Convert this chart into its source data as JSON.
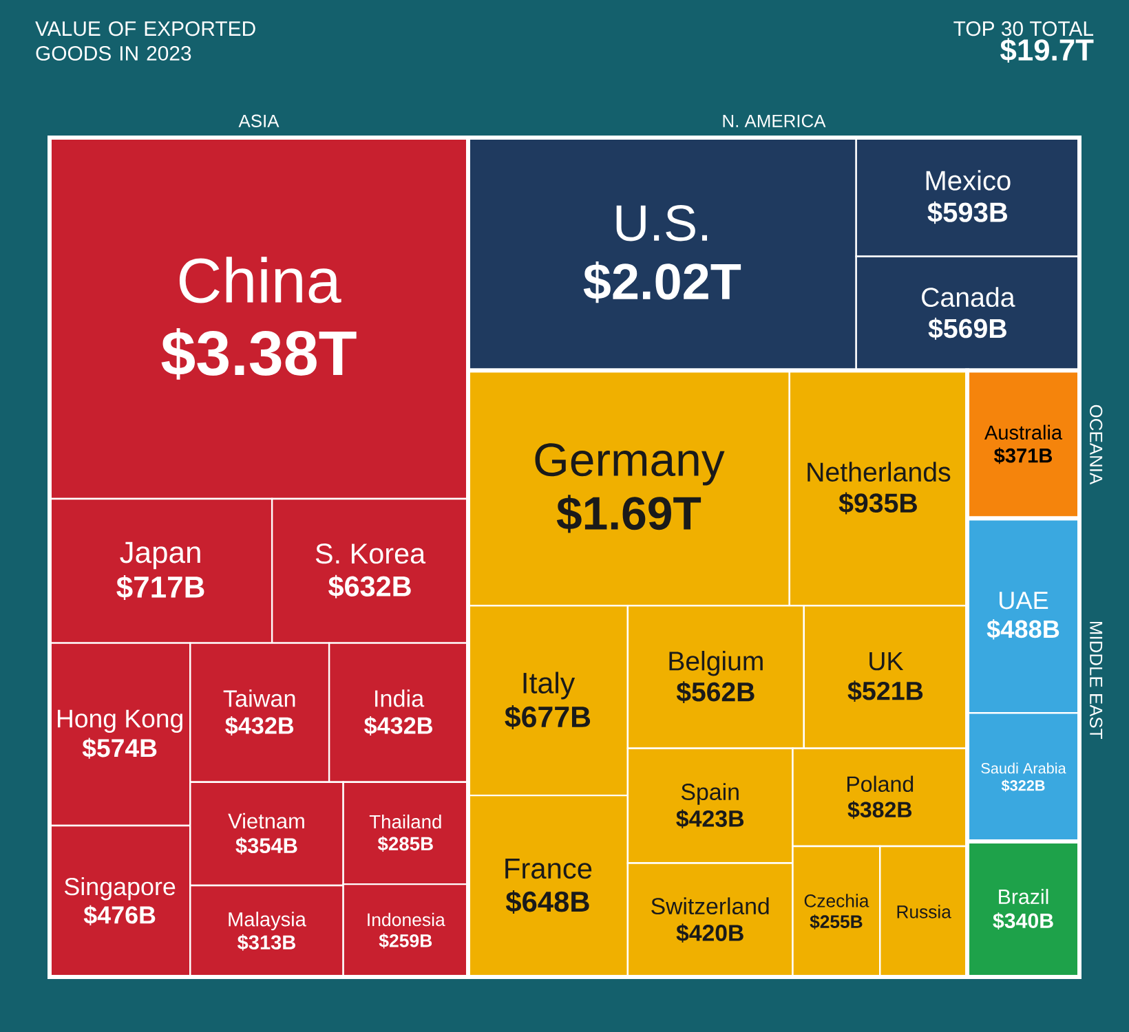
{
  "chart_data": {
    "type": "other",
    "title": "VALUE OF EXPORTED GOODS IN 2023",
    "annotations": [
      "TOP 30 TOTAL",
      "$19.7T"
    ],
    "legend": false,
    "categories": [
      "China",
      "Japan",
      "S. Korea",
      "Hong Kong",
      "Singapore",
      "Taiwan",
      "India",
      "Vietnam",
      "Malaysia",
      "Thailand",
      "Indonesia",
      "U.S.",
      "Mexico",
      "Canada",
      "Germany",
      "Netherlands",
      "Italy",
      "France",
      "Belgium",
      "UK",
      "Spain",
      "Switzerland",
      "Poland",
      "Czechia",
      "Russia",
      "Australia",
      "UAE",
      "Saudi Arabia",
      "Brazil"
    ],
    "series": [
      {
        "name": "ASIA",
        "color": "#c8202f",
        "values": [
          3380000000000,
          717000000000,
          632000000000,
          574000000000,
          476000000000,
          432000000000,
          432000000000,
          354000000000,
          313000000000,
          285000000000,
          259000000000,
          null,
          null,
          null,
          null,
          null,
          null,
          null,
          null,
          null,
          null,
          null,
          null,
          null,
          null,
          null,
          null,
          null,
          null
        ],
        "value_labels": [
          "$3.38T",
          "$717B",
          "$632B",
          "$574B",
          "$476B",
          "$432B",
          "$432B",
          "$354B",
          "$313B",
          "$285B",
          "$259B",
          null,
          null,
          null,
          null,
          null,
          null,
          null,
          null,
          null,
          null,
          null,
          null,
          null,
          null,
          null,
          null,
          null,
          null
        ]
      },
      {
        "name": "N. AMERICA",
        "color": "#1f3a5f",
        "values": [
          null,
          null,
          null,
          null,
          null,
          null,
          null,
          null,
          null,
          null,
          null,
          2020000000000,
          593000000000,
          569000000000,
          null,
          null,
          null,
          null,
          null,
          null,
          null,
          null,
          null,
          null,
          null,
          null,
          null,
          null,
          null
        ],
        "value_labels": [
          null,
          null,
          null,
          null,
          null,
          null,
          null,
          null,
          null,
          null,
          null,
          "$2.02T",
          "$593B",
          "$569B",
          null,
          null,
          null,
          null,
          null,
          null,
          null,
          null,
          null,
          null,
          null,
          null,
          null,
          null,
          null
        ]
      },
      {
        "color": "#f0b000",
        "values": [
          null,
          null,
          null,
          null,
          null,
          null,
          null,
          null,
          null,
          null,
          null,
          null,
          null,
          null,
          1690000000000,
          935000000000,
          677000000000,
          648000000000,
          562000000000,
          521000000000,
          423000000000,
          420000000000,
          382000000000,
          255000000000,
          null,
          null,
          null,
          null,
          null
        ],
        "value_labels": [
          null,
          null,
          null,
          null,
          null,
          null,
          null,
          null,
          null,
          null,
          null,
          null,
          null,
          null,
          "$1.69T",
          "$935B",
          "$677B",
          "$648B",
          "$562B",
          "$521B",
          "$423B",
          "$420B",
          "$382B",
          "$255B",
          null,
          null,
          null,
          null,
          null
        ]
      },
      {
        "name": "OCEANIA",
        "color": "#f5840c",
        "values": [
          null,
          null,
          null,
          null,
          null,
          null,
          null,
          null,
          null,
          null,
          null,
          null,
          null,
          null,
          null,
          null,
          null,
          null,
          null,
          null,
          null,
          null,
          null,
          null,
          null,
          371000000000,
          null,
          null,
          null
        ],
        "value_labels": [
          null,
          null,
          null,
          null,
          null,
          null,
          null,
          null,
          null,
          null,
          null,
          null,
          null,
          null,
          null,
          null,
          null,
          null,
          null,
          null,
          null,
          null,
          null,
          null,
          null,
          "$371B",
          null,
          null,
          null
        ]
      },
      {
        "name": "MIDDLE EAST",
        "color": "#3aa8e0",
        "values": [
          null,
          null,
          null,
          null,
          null,
          null,
          null,
          null,
          null,
          null,
          null,
          null,
          null,
          null,
          null,
          null,
          null,
          null,
          null,
          null,
          null,
          null,
          null,
          null,
          null,
          null,
          488000000000,
          322000000000,
          null
        ],
        "value_labels": [
          null,
          null,
          null,
          null,
          null,
          null,
          null,
          null,
          null,
          null,
          null,
          null,
          null,
          null,
          null,
          null,
          null,
          null,
          null,
          null,
          null,
          null,
          null,
          null,
          null,
          null,
          "$488B",
          "$322B",
          null
        ]
      },
      {
        "color": "#1ea24a",
        "values": [
          null,
          null,
          null,
          null,
          null,
          null,
          null,
          null,
          null,
          null,
          null,
          null,
          null,
          null,
          null,
          null,
          null,
          null,
          null,
          null,
          null,
          null,
          null,
          null,
          null,
          null,
          null,
          null,
          340000000000
        ],
        "value_labels": [
          null,
          null,
          null,
          null,
          null,
          null,
          null,
          null,
          null,
          null,
          null,
          null,
          null,
          null,
          null,
          null,
          null,
          null,
          null,
          null,
          null,
          null,
          null,
          null,
          null,
          null,
          null,
          null,
          "$340B"
        ]
      }
    ]
  }
}
